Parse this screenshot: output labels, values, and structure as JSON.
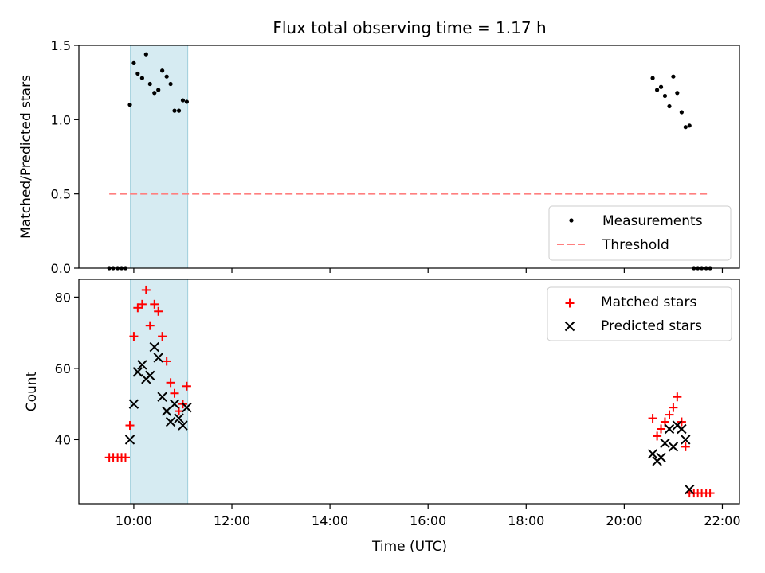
{
  "title": "Flux total observing time = 1.17 h",
  "chart_data": [
    {
      "type": "scatter",
      "ylabel": "Matched/Predicted stars",
      "ylim": [
        0,
        1.5
      ],
      "yticks": [
        "0.0",
        "0.5",
        "1.0",
        "1.5"
      ],
      "xlim": [
        8.88,
        22.35
      ],
      "xticks": [
        10,
        12,
        14,
        16,
        18,
        20,
        22
      ],
      "shaded_interval": [
        9.93,
        11.1
      ],
      "legend_position": "lower-right",
      "series": [
        {
          "name": "Measurements",
          "marker": "dot",
          "color": "#000000",
          "points": [
            [
              9.5,
              0.0
            ],
            [
              9.58,
              0.0
            ],
            [
              9.67,
              0.0
            ],
            [
              9.75,
              0.0
            ],
            [
              9.83,
              0.0
            ],
            [
              9.92,
              1.1
            ],
            [
              10.0,
              1.38
            ],
            [
              10.08,
              1.31
            ],
            [
              10.17,
              1.28
            ],
            [
              10.25,
              1.44
            ],
            [
              10.33,
              1.24
            ],
            [
              10.42,
              1.18
            ],
            [
              10.5,
              1.2
            ],
            [
              10.58,
              1.33
            ],
            [
              10.67,
              1.29
            ],
            [
              10.75,
              1.24
            ],
            [
              10.83,
              1.06
            ],
            [
              10.92,
              1.06
            ],
            [
              11.0,
              1.13
            ],
            [
              11.08,
              1.12
            ],
            [
              20.58,
              1.28
            ],
            [
              20.67,
              1.2
            ],
            [
              20.75,
              1.22
            ],
            [
              20.83,
              1.16
            ],
            [
              20.92,
              1.09
            ],
            [
              21.0,
              1.29
            ],
            [
              21.08,
              1.18
            ],
            [
              21.17,
              1.05
            ],
            [
              21.25,
              0.95
            ],
            [
              21.33,
              0.96
            ],
            [
              21.42,
              0.0
            ],
            [
              21.5,
              0.0
            ],
            [
              21.58,
              0.0
            ],
            [
              21.67,
              0.0
            ],
            [
              21.75,
              0.0
            ]
          ]
        },
        {
          "name": "Threshold",
          "style": "dashed",
          "color": "#ff7f7f",
          "points": [
            [
              9.5,
              0.5
            ],
            [
              21.75,
              0.5
            ]
          ]
        }
      ]
    },
    {
      "type": "scatter",
      "xlabel": "Time (UTC)",
      "ylabel": "Count",
      "ylim": [
        22,
        85
      ],
      "yticks": [
        "40",
        "60",
        "80"
      ],
      "xlim": [
        8.88,
        22.35
      ],
      "xticks": [
        "10:00",
        "12:00",
        "14:00",
        "16:00",
        "18:00",
        "20:00",
        "22:00"
      ],
      "shaded_interval": [
        9.93,
        11.1
      ],
      "legend_position": "upper-right",
      "series": [
        {
          "name": "Matched stars",
          "marker": "plus",
          "color": "#ff0000",
          "points": [
            [
              9.5,
              35
            ],
            [
              9.58,
              35
            ],
            [
              9.67,
              35
            ],
            [
              9.75,
              35
            ],
            [
              9.83,
              35
            ],
            [
              9.92,
              44
            ],
            [
              10.0,
              69
            ],
            [
              10.08,
              77
            ],
            [
              10.17,
              78
            ],
            [
              10.25,
              82
            ],
            [
              10.33,
              72
            ],
            [
              10.42,
              78
            ],
            [
              10.5,
              76
            ],
            [
              10.58,
              69
            ],
            [
              10.67,
              62
            ],
            [
              10.75,
              56
            ],
            [
              10.83,
              53
            ],
            [
              10.92,
              48
            ],
            [
              11.0,
              50
            ],
            [
              11.08,
              55
            ],
            [
              20.58,
              46
            ],
            [
              20.67,
              41
            ],
            [
              20.75,
              43
            ],
            [
              20.83,
              45
            ],
            [
              20.92,
              47
            ],
            [
              21.0,
              49
            ],
            [
              21.08,
              52
            ],
            [
              21.17,
              45
            ],
            [
              21.25,
              38
            ],
            [
              21.33,
              25
            ],
            [
              21.42,
              25
            ],
            [
              21.5,
              25
            ],
            [
              21.58,
              25
            ],
            [
              21.67,
              25
            ],
            [
              21.75,
              25
            ]
          ]
        },
        {
          "name": "Predicted stars",
          "marker": "x",
          "color": "#000000",
          "points": [
            [
              9.92,
              40
            ],
            [
              10.0,
              50
            ],
            [
              10.08,
              59
            ],
            [
              10.17,
              61
            ],
            [
              10.25,
              57
            ],
            [
              10.33,
              58
            ],
            [
              10.42,
              66
            ],
            [
              10.5,
              63
            ],
            [
              10.58,
              52
            ],
            [
              10.67,
              48
            ],
            [
              10.75,
              45
            ],
            [
              10.83,
              50
            ],
            [
              10.92,
              46
            ],
            [
              11.0,
              44
            ],
            [
              11.08,
              49
            ],
            [
              20.58,
              36
            ],
            [
              20.67,
              34
            ],
            [
              20.75,
              35
            ],
            [
              20.83,
              39
            ],
            [
              20.92,
              43
            ],
            [
              21.0,
              38
            ],
            [
              21.08,
              44
            ],
            [
              21.17,
              43
            ],
            [
              21.25,
              40
            ],
            [
              21.33,
              26
            ]
          ]
        }
      ]
    }
  ]
}
